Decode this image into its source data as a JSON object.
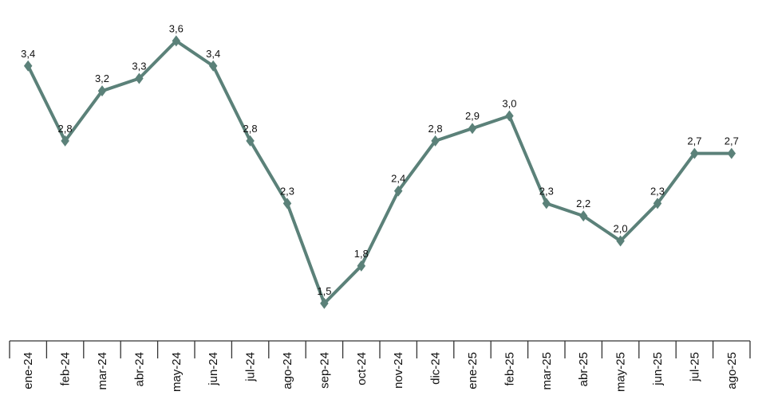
{
  "chart_data": {
    "type": "line",
    "title": "",
    "xlabel": "",
    "ylabel": "",
    "grid": false,
    "legend": "none",
    "ylim": [
      1.2,
      3.8
    ],
    "categories": [
      "ene-24",
      "feb-24",
      "mar-24",
      "abr-24",
      "may-24",
      "jun-24",
      "jul-24",
      "ago-24",
      "sep-24",
      "oct-24",
      "nov-24",
      "dic-24",
      "ene-25",
      "feb-25",
      "mar-25",
      "abr-25",
      "may-25",
      "jun-25",
      "jul-25",
      "ago-25"
    ],
    "series": [
      {
        "values": [
          3.4,
          2.8,
          3.2,
          3.3,
          3.6,
          3.4,
          2.8,
          2.3,
          1.5,
          1.8,
          2.4,
          2.8,
          2.9,
          3.0,
          2.3,
          2.2,
          2.0,
          2.3,
          2.7,
          2.7
        ],
        "data_labels": [
          "3,4",
          "2,8",
          "3,2",
          "3,3",
          "3,6",
          "3,4",
          "2,8",
          "2,3",
          "1,5",
          "1,8",
          "2,4",
          "2,8",
          "2,9",
          "3,0",
          "2,3",
          "2,2",
          "2,0",
          "2,3",
          "2,7",
          "2,7"
        ],
        "color": "#5b8179",
        "marker": "diamond"
      }
    ],
    "axis_color": "#333333"
  }
}
